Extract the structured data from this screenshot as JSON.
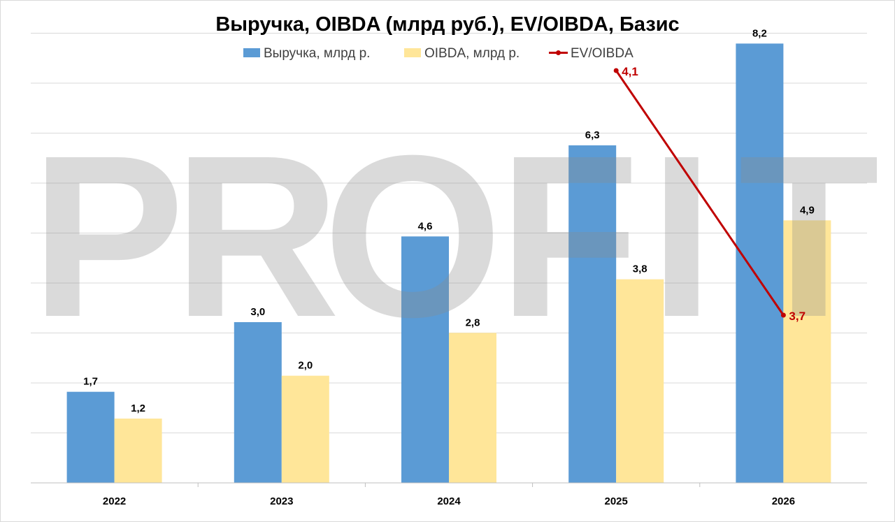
{
  "watermark": {
    "letters": [
      "P",
      "R",
      "O",
      "F",
      "I",
      "T"
    ]
  },
  "chart_data": {
    "type": "bar",
    "title": "Выручка, OIBDA (млрд руб.), EV/OIBDA, Базис",
    "categories": [
      "2022",
      "2023",
      "2024",
      "2025",
      "2026"
    ],
    "series": [
      {
        "name": "Выручка, млрд р.",
        "type": "bar",
        "color": "#5b9bd5",
        "values": [
          1.7,
          3.0,
          4.6,
          6.3,
          8.2
        ],
        "labels": [
          "1,7",
          "3,0",
          "4,6",
          "6,3",
          "8,2"
        ]
      },
      {
        "name": "OIBDA, млрд р.",
        "type": "bar",
        "color": "#ffe699",
        "values": [
          1.2,
          2.0,
          2.8,
          3.8,
          4.9
        ],
        "labels": [
          "1,2",
          "2,0",
          "2,8",
          "3,8",
          "4,9"
        ]
      },
      {
        "name": "EV/OIBDA",
        "type": "line",
        "color": "#c00000",
        "values": [
          null,
          null,
          null,
          4.1,
          3.7
        ],
        "labels": [
          "",
          "",
          "",
          "4,1",
          "3,7"
        ],
        "ylim": [
          3.3,
          4.15
        ]
      }
    ],
    "ylim": [
      0,
      8.4
    ],
    "grid": true,
    "legend_position": "top"
  }
}
